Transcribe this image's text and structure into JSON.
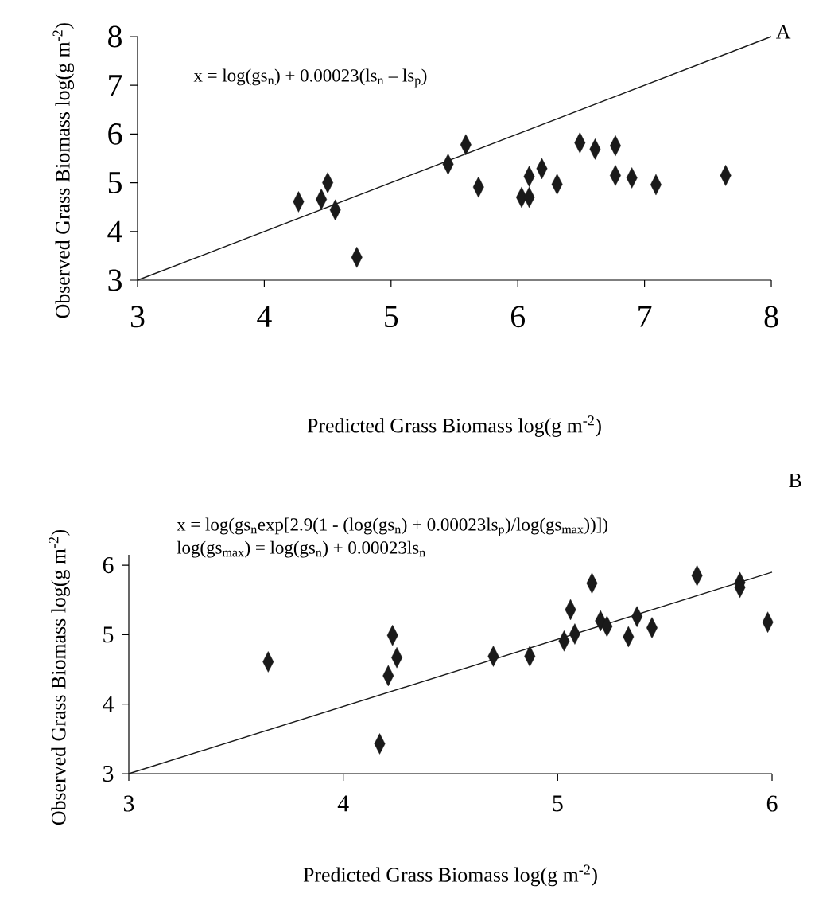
{
  "chart_data": [
    {
      "type": "scatter",
      "xlabel": "Predicted Grass Biomass log(g m$^{-2}$)",
      "ylabel": "Observed Grass Biomass log(g m$^{-2}$)",
      "annotations": [
        "A",
        "x = log(gs$_{n}$) + 0.00023(ls$_{n}$ – ls$_{p}$)"
      ],
      "xlim": [
        3,
        8
      ],
      "ylim": [
        3,
        8
      ],
      "xticks": [
        3,
        4,
        5,
        6,
        7,
        8
      ],
      "yticks": [
        3,
        4,
        5,
        6,
        7,
        8
      ],
      "series": [
        {
          "type": "scatter",
          "marker": "diamond",
          "color": "#1a1a1a",
          "x": [
            4.27,
            4.45,
            4.5,
            4.56,
            4.73,
            5.45,
            5.59,
            5.69,
            6.03,
            6.09,
            6.09,
            6.19,
            6.31,
            6.49,
            6.61,
            6.77,
            6.77,
            6.9,
            7.09,
            7.64
          ],
          "values": [
            4.61,
            4.66,
            5.0,
            4.44,
            3.47,
            5.38,
            5.78,
            4.91,
            4.7,
            4.7,
            5.13,
            5.29,
            4.97,
            5.82,
            5.69,
            5.76,
            5.15,
            5.1,
            4.96,
            5.15
          ]
        },
        {
          "type": "line",
          "marker": "none",
          "color": "#1a1a1a",
          "x": [
            3,
            8
          ],
          "values": [
            3,
            8
          ]
        }
      ]
    },
    {
      "type": "scatter",
      "xlabel": "Predicted Grass Biomass log(g m$^{-2}$)",
      "ylabel": "Observed Grass Biomass log(g m$^{-2}$)",
      "annotations": [
        "B",
        "x = log(gs$_{n}$exp[2.9(1 - (log(gs$_{n}$) + 0.00023ls$_{p}$)/log(gs$_{max}$))])",
        "log(gs$_{max}$) = log(gs$_{n}$) + 0.00023ls$_{n}$"
      ],
      "xlim": [
        3,
        6
      ],
      "ylim": [
        3,
        6.15
      ],
      "xticks": [
        3,
        4,
        5,
        6
      ],
      "yticks": [
        3,
        4,
        5,
        6
      ],
      "series": [
        {
          "type": "scatter",
          "marker": "diamond",
          "color": "#1a1a1a",
          "x": [
            3.65,
            4.17,
            4.21,
            4.23,
            4.25,
            4.7,
            4.87,
            5.03,
            5.06,
            5.08,
            5.16,
            5.2,
            5.23,
            5.33,
            5.37,
            5.44,
            5.65,
            5.85,
            5.85,
            5.98
          ],
          "values": [
            4.61,
            3.43,
            4.41,
            4.99,
            4.67,
            4.69,
            4.69,
            4.91,
            5.36,
            5.01,
            5.74,
            5.2,
            5.12,
            4.97,
            5.26,
            5.1,
            5.85,
            5.75,
            5.68,
            5.18
          ]
        },
        {
          "type": "line",
          "marker": "none",
          "color": "#1a1a1a",
          "x": [
            3,
            6
          ],
          "values": [
            3,
            5.9
          ]
        }
      ]
    }
  ]
}
